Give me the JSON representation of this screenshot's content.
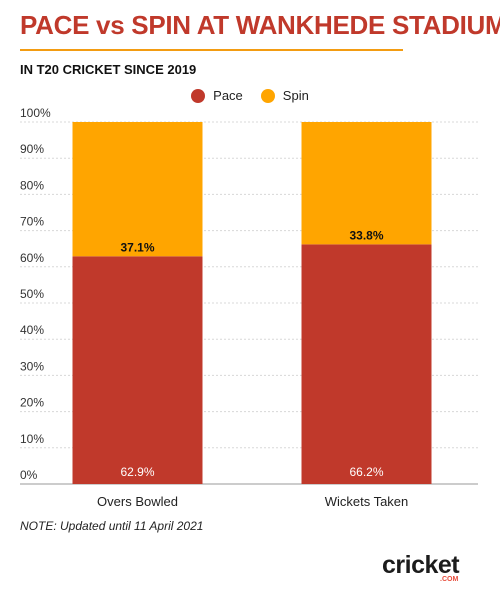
{
  "chart_data": {
    "type": "bar",
    "stacked": true,
    "orientation": "vertical",
    "title": "PACE vs SPIN AT WANKHEDE STADIUM",
    "subtitle": "IN T20 CRICKET SINCE 2019",
    "categories": [
      "Overs Bowled",
      "Wickets Taken"
    ],
    "series": [
      {
        "name": "Pace",
        "color": "#c0392b",
        "values": [
          62.9,
          66.2
        ],
        "labels": [
          "62.9%",
          "66.2%"
        ]
      },
      {
        "name": "Spin",
        "color": "#ffa500",
        "values": [
          37.1,
          33.8
        ],
        "labels": [
          "37.1%",
          "33.8%"
        ]
      }
    ],
    "ylim": [
      0,
      100
    ],
    "yticks": [
      0,
      10,
      20,
      30,
      40,
      50,
      60,
      70,
      80,
      90,
      100
    ],
    "ytick_labels": [
      "0%",
      "10%",
      "20%",
      "30%",
      "40%",
      "50%",
      "60%",
      "70%",
      "80%",
      "90%",
      "100%"
    ],
    "grid": true,
    "legend_position": "top-center"
  },
  "note": "NOTE: Updated until 11 April 2021",
  "logo": {
    "word": "cricket",
    "sub": ".COM"
  }
}
